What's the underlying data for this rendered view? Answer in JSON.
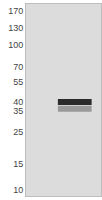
{
  "chart_data": {
    "type": "blot",
    "bands": [
      {
        "x": 1.3,
        "y": 40,
        "color": "#2b2b2b"
      },
      {
        "x": 1.3,
        "y": 36,
        "color": "#9a9a9a"
      }
    ],
    "xlim": [
      0,
      2
    ],
    "ylim": [
      9,
      190
    ],
    "yticks": [
      170,
      130,
      100,
      70,
      55,
      40,
      35,
      25,
      15,
      10
    ],
    "log": "y",
    "grid": false,
    "tick_labels": "y",
    "color": "#dcdcdc"
  }
}
